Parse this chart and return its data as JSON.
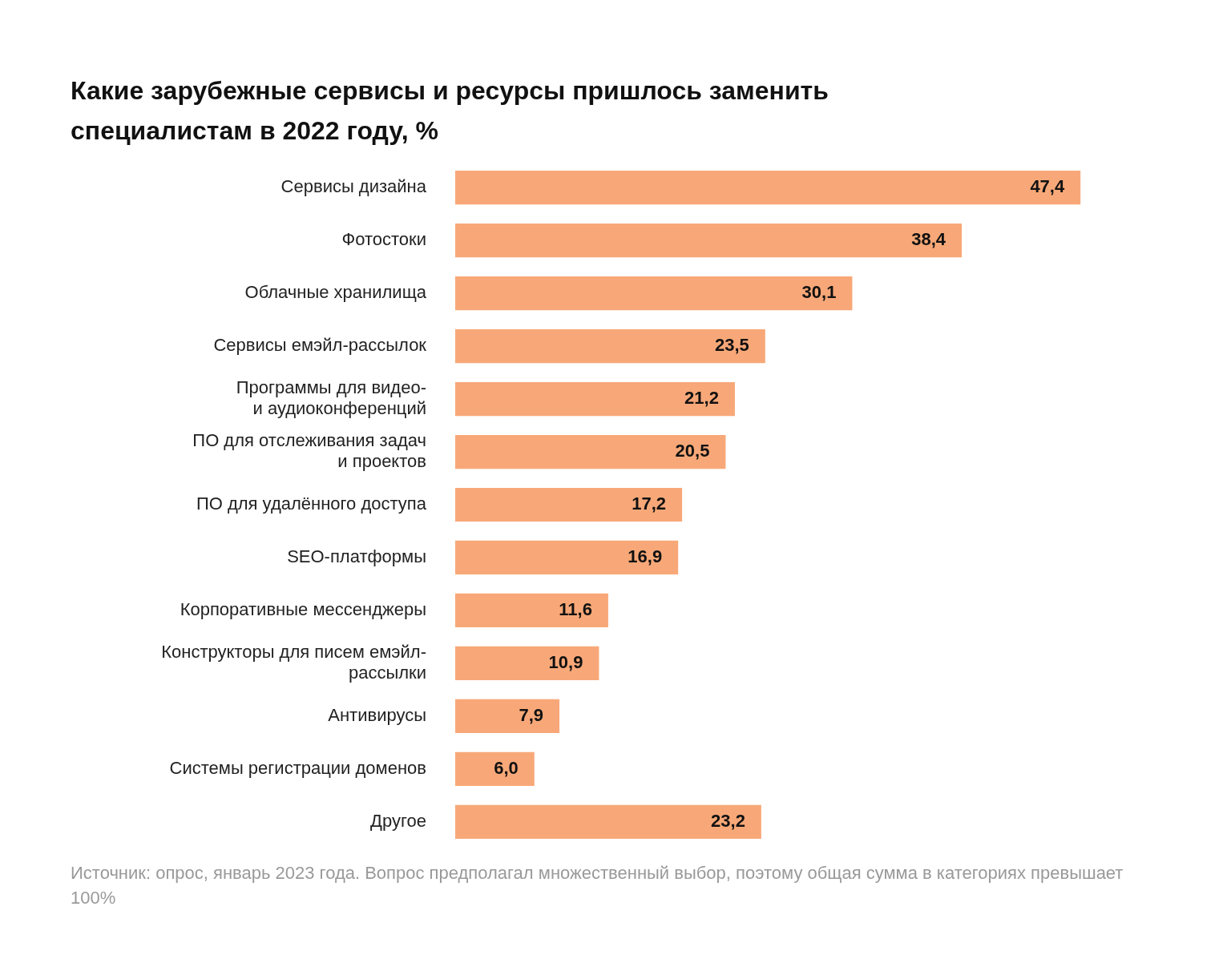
{
  "chart_data": {
    "type": "bar",
    "orientation": "horizontal",
    "title": "Какие зарубежные сервисы и ресурсы пришлось заменить специалистам в 2022 году, %",
    "categories": [
      "Сервисы дизайна",
      "Фотостоки",
      "Облачные хранилища",
      "Сервисы емэйл-рассылок",
      "Программы для видео- и аудиоконференций",
      "ПО для отслеживания задач и проектов",
      "ПО для удалённого доступа",
      "SEO-платформы",
      "Корпоративные мессенджеры",
      "Конструкторы для писем емэйл-рассылки",
      "Антивирусы",
      "Системы регистрации доменов",
      "Другое"
    ],
    "values": [
      47.4,
      38.4,
      30.1,
      23.5,
      21.2,
      20.5,
      17.2,
      16.9,
      11.6,
      10.9,
      7.9,
      6.0,
      23.2
    ],
    "value_labels": [
      "47,4",
      "38,4",
      "30,1",
      "23,5",
      "21,2",
      "20,5",
      "17,2",
      "16,9",
      "11,6",
      "10,9",
      "7,9",
      "6,0",
      "23,2"
    ],
    "color": "#f8a878",
    "legend": false,
    "annotations": [
      "Источник: опрос, январь 2023 года. Вопрос предполагал множественный выбор, поэтому общая сумма в категориях превышает 100%"
    ]
  }
}
